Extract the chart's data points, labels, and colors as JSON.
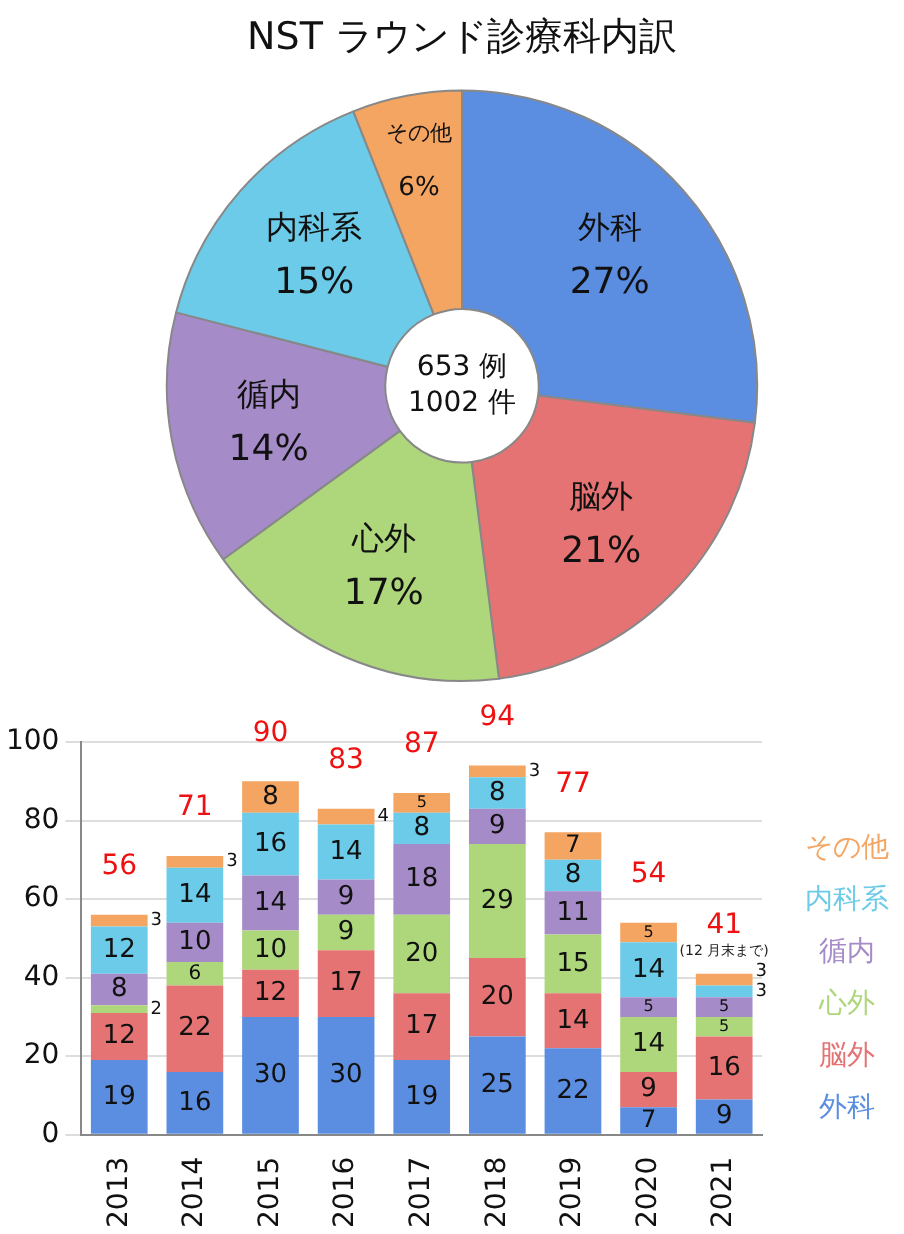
{
  "chart_data": [
    {
      "type": "donut",
      "title": "NST ラウンド診療科内訳",
      "categories": [
        "外科",
        "脳外",
        "心外",
        "循内",
        "内科系",
        "その他"
      ],
      "values": [
        27,
        21,
        17,
        14,
        15,
        6
      ],
      "colors": [
        "#5b8ee0",
        "#e57373",
        "#aed67a",
        "#a58bc8",
        "#6ccbe8",
        "#f5a562"
      ],
      "value_labels": [
        "27%",
        "21%",
        "17%",
        "14%",
        "15%",
        "6%"
      ],
      "annotations": [
        "653 例",
        "1002 件"
      ]
    },
    {
      "type": "bar",
      "stacked": true,
      "categories": [
        "2013",
        "2014",
        "2015",
        "2016",
        "2017",
        "2018",
        "2019",
        "2020",
        "2021"
      ],
      "series": [
        {
          "name": "外科",
          "color": "#5b8ee0",
          "values": [
            19,
            16,
            30,
            30,
            19,
            25,
            22,
            7,
            9
          ]
        },
        {
          "name": "脳外",
          "color": "#e57373",
          "values": [
            12,
            22,
            12,
            17,
            17,
            20,
            14,
            9,
            16
          ]
        },
        {
          "name": "心外",
          "color": "#aed67a",
          "values": [
            2,
            6,
            10,
            9,
            20,
            29,
            15,
            14,
            5
          ]
        },
        {
          "name": "循内",
          "color": "#a58bc8",
          "values": [
            8,
            10,
            14,
            9,
            18,
            9,
            11,
            5,
            5
          ]
        },
        {
          "name": "内科系",
          "color": "#6ccbe8",
          "values": [
            12,
            14,
            16,
            14,
            8,
            8,
            8,
            14,
            3
          ]
        },
        {
          "name": "その他",
          "color": "#f5a562",
          "values": [
            3,
            3,
            8,
            4,
            5,
            3,
            7,
            5,
            3
          ]
        }
      ],
      "ylim": [
        0,
        100
      ],
      "yticks": [
        0,
        20,
        40,
        60,
        80,
        100
      ],
      "grid": "y",
      "legend": "right",
      "data_labels": true,
      "totals": [
        "56",
        "71",
        "90",
        "83",
        "87",
        "94",
        "77",
        "54",
        "41"
      ],
      "annotations": [
        {
          "text": "(12 月末まで)",
          "x": "2021",
          "y": 41
        }
      ]
    }
  ]
}
